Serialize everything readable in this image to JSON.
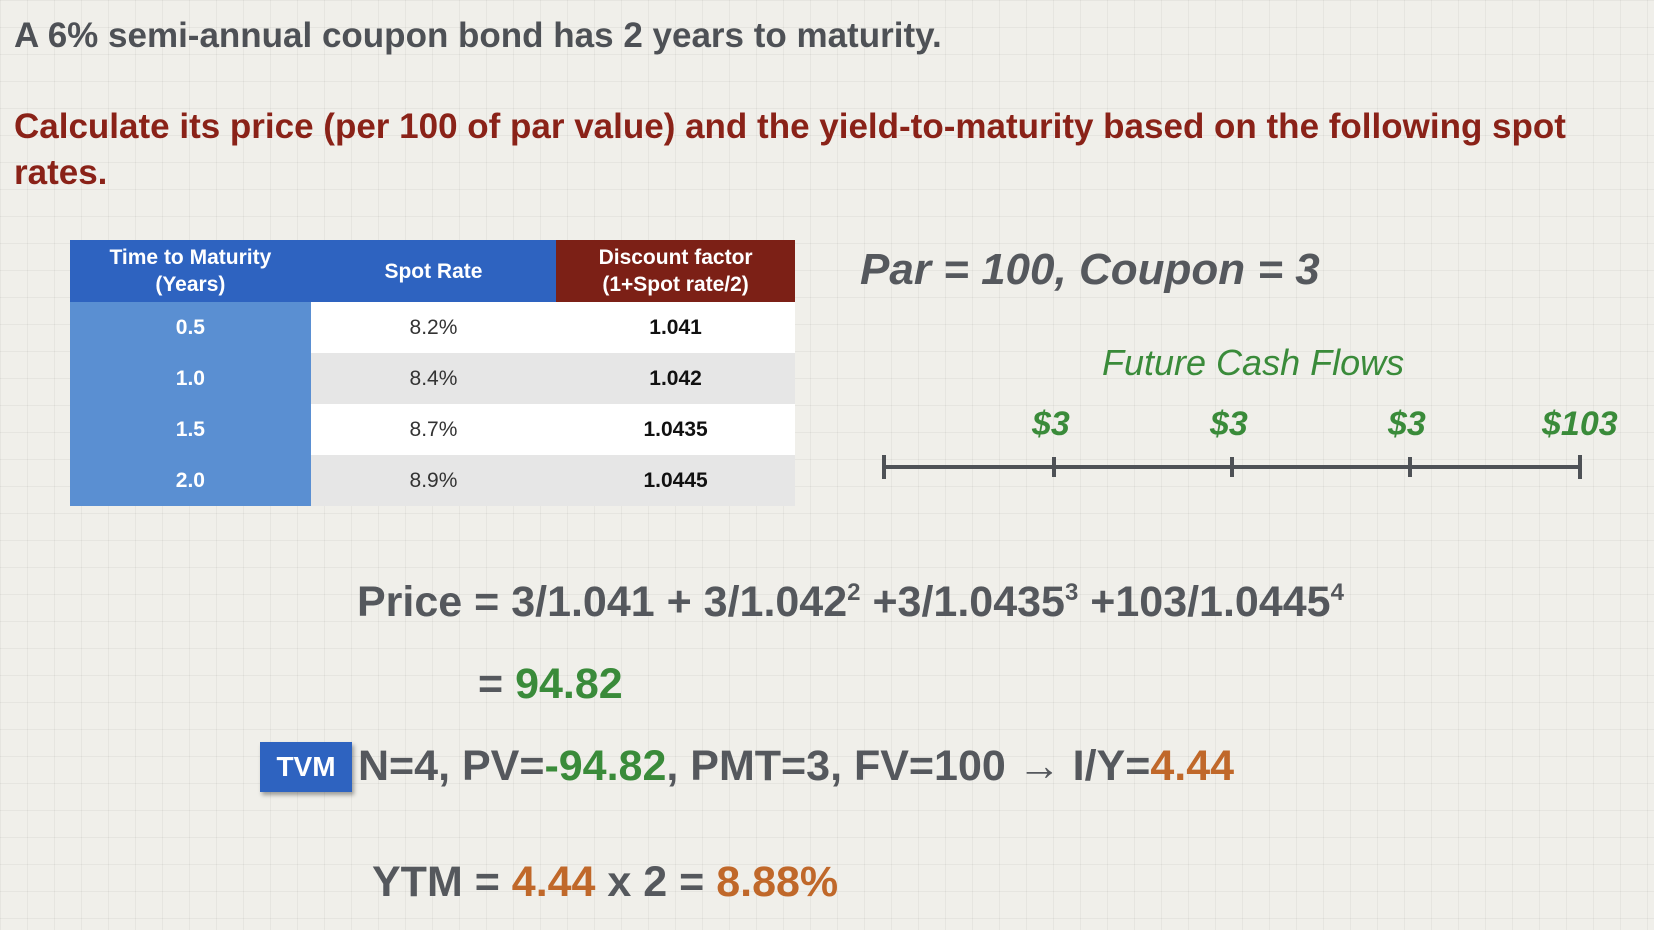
{
  "intro": "A 6% semi-annual coupon bond has 2 years to maturity.",
  "task": "Calculate its price (per 100 of par value) and the yield-to-maturity based on the following spot rates.",
  "table": {
    "headers": {
      "maturity_line1": "Time to Maturity",
      "maturity_line2": "(Years)",
      "spot": "Spot Rate",
      "df_line1": "Discount factor",
      "df_line2": "(1+Spot rate/2)"
    },
    "rows": [
      {
        "maturity": "0.5",
        "spot": "8.2%",
        "df": "1.041"
      },
      {
        "maturity": "1.0",
        "spot": "8.4%",
        "df": "1.042"
      },
      {
        "maturity": "1.5",
        "spot": "8.7%",
        "df": "1.0435"
      },
      {
        "maturity": "2.0",
        "spot": "8.9%",
        "df": "1.0445"
      }
    ]
  },
  "par_coupon": "Par = 100, Coupon = 3",
  "cash_flows": {
    "title": "Future Cash Flows",
    "values": [
      "$3",
      "$3",
      "$3",
      "$103"
    ]
  },
  "price": {
    "label": "Price = ",
    "t1": "3/1.041 + 3/1.042",
    "e1": "2",
    "t2": " +3/1.0435",
    "e2": "3",
    "t3": " +103/1.0445",
    "e3": "4",
    "eq": "= ",
    "result": "94.82"
  },
  "tvm": {
    "badge": "TVM",
    "p1": "N=4, PV=",
    "pv": "-94.82",
    "p2": ", PMT=3, FV=100 →  I/Y=",
    "iy": "4.44"
  },
  "ytm": {
    "label": "YTM = ",
    "iy": "4.44",
    "mult": " x 2  = ",
    "result": "8.88%"
  },
  "colors": {
    "accent_green": "#3a8b3a",
    "accent_orange": "#c0682a",
    "accent_red": "#8a2218",
    "header_blue": "#2e63c0"
  }
}
